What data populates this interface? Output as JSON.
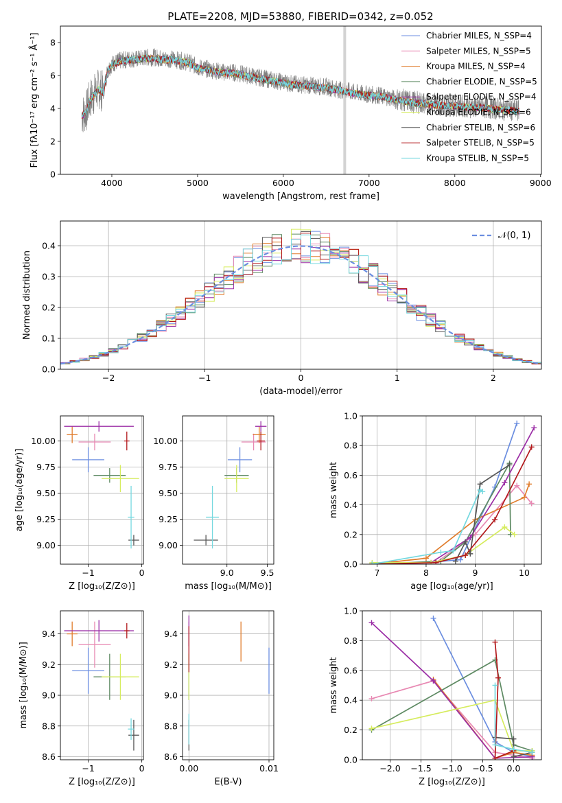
{
  "colors": [
    "#6b8ee0",
    "#e889b3",
    "#e07c2c",
    "#5e8a63",
    "#9b2ea6",
    "#d6ec5e",
    "#555555",
    "#b2181b",
    "#74d8df"
  ],
  "chart_data": [
    {
      "id": "spectrum",
      "type": "line",
      "title": "PLATE=2208, MJD=53880, FIBERID=0342, z=0.052",
      "xlabel": "wavelength [Angstrom, rest frame]",
      "ylabel": "Flux [fλ10⁻¹⁷ erg cm⁻² s⁻¹ Å⁻¹]",
      "xlim": [
        3400,
        9010
      ],
      "ylim": [
        0,
        9
      ],
      "xticks": [
        4000,
        5000,
        6000,
        7000,
        8000,
        9000
      ],
      "yticks": [
        0,
        2,
        4,
        6,
        8
      ],
      "data_color": "#808080",
      "data_x": [
        3650,
        3700,
        3750,
        3800,
        3850,
        3900,
        3950,
        4000,
        4100,
        4200,
        4300,
        4400,
        4500,
        4600,
        4700,
        4800,
        4900,
        5000,
        5100,
        5200,
        5300,
        5400,
        5500,
        5600,
        5700,
        5800,
        5900,
        6000,
        6100,
        6200,
        6300,
        6400,
        6500,
        6600,
        6700,
        6800,
        6900,
        7000,
        7100,
        7200,
        7300,
        7400,
        7500,
        7600,
        7700,
        7800,
        7900,
        8000,
        8100,
        8200,
        8300,
        8400,
        8500,
        8600,
        8700,
        8750
      ],
      "data_y": [
        3.6,
        3.8,
        4.6,
        4.9,
        5.2,
        5.0,
        6.3,
        6.7,
        6.9,
        7.0,
        7.0,
        7.1,
        7.1,
        7.0,
        7.0,
        6.9,
        6.8,
        6.5,
        6.4,
        6.3,
        6.2,
        6.2,
        6.1,
        6.0,
        5.9,
        5.8,
        5.7,
        5.6,
        5.5,
        5.45,
        5.4,
        5.35,
        5.3,
        5.2,
        5.1,
        5.0,
        4.9,
        4.85,
        4.8,
        4.7,
        4.6,
        4.5,
        4.4,
        4.35,
        4.3,
        4.25,
        4.2,
        4.2,
        4.15,
        4.1,
        4.1,
        4.05,
        4.0,
        3.95,
        3.9,
        3.85
      ],
      "legend": [
        "Chabrier MILES, N_SSP=4",
        "Salpeter MILES, N_SSP=5",
        "Kroupa MILES, N_SSP=4",
        "Chabrier ELODIE, N_SSP=5",
        "Salpeter ELODIE, N_SSP=4",
        "Kroupa ELODIE, N_SSP=6",
        "Chabrier STELIB, N_SSP=6",
        "Salpeter STELIB, N_SSP=5",
        "Kroupa STELIB, N_SSP=5"
      ],
      "legend_placement": "top-right"
    },
    {
      "id": "residuals",
      "type": "histogram",
      "xlabel": "(data-model)/error",
      "ylabel": "Normed distribution",
      "xlim": [
        -2.5,
        2.5
      ],
      "ylim": [
        0,
        0.48
      ],
      "xticks": [
        -2,
        -1,
        0,
        1,
        2
      ],
      "yticks": [
        0.0,
        0.1,
        0.2,
        0.3,
        0.4
      ],
      "bin_width": 0.1,
      "gaussian_label": "𝒩(0, 1)",
      "gaussian_color": "#6b8ee0",
      "grid": true,
      "legend_placement": "top-right"
    },
    {
      "id": "age_vs_Z",
      "type": "errorbar",
      "xlabel": "Z [log₁₀(Z/Z⊙)]",
      "ylabel": "age  [log₁₀(age/yr)]",
      "xlim": [
        -1.52,
        0.03
      ],
      "ylim": [
        8.82,
        10.24
      ],
      "xticks": [
        -1,
        0
      ],
      "yticks": [
        9.0,
        9.25,
        9.5,
        9.75,
        10.0
      ],
      "points": [
        {
          "x": -1.0,
          "xerr": 0.3,
          "y": 9.82,
          "yerr": 0.12,
          "c": 0
        },
        {
          "x": -0.88,
          "xerr": 0.3,
          "y": 9.99,
          "yerr": 0.08,
          "c": 1
        },
        {
          "x": -1.3,
          "xerr": 0.1,
          "y": 10.06,
          "yerr": 0.08,
          "c": 2
        },
        {
          "x": -0.6,
          "xerr": 0.3,
          "y": 9.67,
          "yerr": 0.07,
          "c": 3
        },
        {
          "x": -0.8,
          "xerr": 0.65,
          "y": 10.14,
          "yerr": 0.05,
          "c": 4
        },
        {
          "x": -0.4,
          "xerr": 0.35,
          "y": 9.64,
          "yerr": 0.13,
          "c": 5
        },
        {
          "x": -0.15,
          "xerr": 0.1,
          "y": 9.05,
          "yerr": 0.05,
          "c": 6
        },
        {
          "x": -0.28,
          "xerr": 0.05,
          "y": 10.0,
          "yerr": 0.09,
          "c": 7
        },
        {
          "x": -0.2,
          "xerr": 0.06,
          "y": 9.27,
          "yerr": 0.3,
          "c": 8
        }
      ]
    },
    {
      "id": "age_vs_mass",
      "type": "errorbar",
      "xlabel": "mass [log₁₀(M/M⊙)]",
      "ylabel": "",
      "xlim": [
        8.45,
        9.58
      ],
      "ylim": [
        8.82,
        10.24
      ],
      "xticks": [
        9.0,
        9.5
      ],
      "yticks": [
        9.0,
        9.25,
        9.5,
        9.75,
        10.0
      ],
      "points": [
        {
          "x": 9.16,
          "xerr": 0.15,
          "y": 9.82,
          "yerr": 0.12,
          "c": 0
        },
        {
          "x": 9.33,
          "xerr": 0.15,
          "y": 9.99,
          "yerr": 0.08,
          "c": 1
        },
        {
          "x": 9.4,
          "xerr": 0.08,
          "y": 10.06,
          "yerr": 0.08,
          "c": 2
        },
        {
          "x": 9.12,
          "xerr": 0.15,
          "y": 9.67,
          "yerr": 0.07,
          "c": 3
        },
        {
          "x": 9.42,
          "xerr": 0.07,
          "y": 10.14,
          "yerr": 0.05,
          "c": 4
        },
        {
          "x": 9.12,
          "xerr": 0.15,
          "y": 9.64,
          "yerr": 0.13,
          "c": 5
        },
        {
          "x": 8.74,
          "xerr": 0.15,
          "y": 9.05,
          "yerr": 0.05,
          "c": 6
        },
        {
          "x": 9.42,
          "xerr": 0.05,
          "y": 10.0,
          "yerr": 0.09,
          "c": 7
        },
        {
          "x": 8.82,
          "xerr": 0.08,
          "y": 9.27,
          "yerr": 0.3,
          "c": 8
        }
      ]
    },
    {
      "id": "massweight_vs_age",
      "type": "line",
      "xlabel": "age  [log₁₀(age/yr)]",
      "ylabel": "mass weight",
      "xlim": [
        6.7,
        10.35
      ],
      "ylim": [
        0,
        1.0
      ],
      "xticks": [
        7,
        8,
        9,
        10
      ],
      "yticks": [
        0.0,
        0.2,
        0.4,
        0.6,
        0.8,
        1.0
      ],
      "series": [
        {
          "c": 0,
          "x": [
            6.9,
            8.0,
            8.7,
            9.4,
            9.85
          ],
          "y": [
            0.0,
            0.01,
            0.03,
            0.52,
            0.95
          ]
        },
        {
          "c": 1,
          "x": [
            6.9,
            8.2,
            9.0,
            9.85,
            10.15
          ],
          "y": [
            0.0,
            0.01,
            0.2,
            0.53,
            0.41
          ]
        },
        {
          "c": 2,
          "x": [
            6.9,
            8.0,
            9.0,
            10.0,
            10.1
          ],
          "y": [
            0.0,
            0.04,
            0.3,
            0.45,
            0.54
          ]
        },
        {
          "c": 3,
          "x": [
            6.9,
            8.3,
            8.8,
            9.7,
            9.72
          ],
          "y": [
            0.0,
            0.02,
            0.15,
            0.68,
            0.2
          ]
        },
        {
          "c": 4,
          "x": [
            6.9,
            8.1,
            8.9,
            9.6,
            10.2
          ],
          "y": [
            0.0,
            0.01,
            0.18,
            0.55,
            0.92
          ]
        },
        {
          "c": 5,
          "x": [
            6.9,
            8.1,
            8.8,
            9.6,
            9.8
          ],
          "y": [
            0.01,
            0.01,
            0.06,
            0.25,
            0.2
          ]
        },
        {
          "c": 6,
          "x": [
            8.6,
            8.8,
            8.9,
            9.1,
            9.7
          ],
          "y": [
            0.02,
            0.15,
            0.07,
            0.54,
            0.67
          ]
        },
        {
          "c": 7,
          "x": [
            6.9,
            8.2,
            8.8,
            9.4,
            10.15
          ],
          "y": [
            0.0,
            0.01,
            0.06,
            0.3,
            0.79
          ]
        },
        {
          "c": 8,
          "x": [
            6.9,
            8.3,
            8.55,
            9.1,
            9.15
          ],
          "y": [
            0.0,
            0.08,
            0.09,
            0.5,
            0.49
          ]
        }
      ]
    },
    {
      "id": "mass_vs_Z",
      "type": "errorbar",
      "xlabel": "Z [log₁₀(Z/Z⊙)]",
      "ylabel": "mass [log₁₀(M/M⊙)]",
      "xlim": [
        -1.52,
        0.03
      ],
      "ylim": [
        8.58,
        9.55
      ],
      "xticks": [
        -1,
        0
      ],
      "yticks": [
        8.6,
        8.8,
        9.0,
        9.2,
        9.4
      ],
      "points": [
        {
          "x": -1.0,
          "xerr": 0.3,
          "y": 9.16,
          "yerr": 0.15,
          "c": 0
        },
        {
          "x": -0.88,
          "xerr": 0.3,
          "y": 9.33,
          "yerr": 0.15,
          "c": 1
        },
        {
          "x": -1.3,
          "xerr": 0.1,
          "y": 9.4,
          "yerr": 0.08,
          "c": 2
        },
        {
          "x": -0.6,
          "xerr": 0.3,
          "y": 9.12,
          "yerr": 0.15,
          "c": 3
        },
        {
          "x": -0.8,
          "xerr": 0.65,
          "y": 9.42,
          "yerr": 0.07,
          "c": 4
        },
        {
          "x": -0.4,
          "xerr": 0.35,
          "y": 9.12,
          "yerr": 0.15,
          "c": 5
        },
        {
          "x": -0.15,
          "xerr": 0.1,
          "y": 8.74,
          "yerr": 0.1,
          "c": 6
        },
        {
          "x": -0.28,
          "xerr": 0.05,
          "y": 9.42,
          "yerr": 0.05,
          "c": 7
        },
        {
          "x": -0.2,
          "xerr": 0.06,
          "y": 8.78,
          "yerr": 0.07,
          "c": 8
        }
      ]
    },
    {
      "id": "mass_vs_ebv",
      "type": "errorbar",
      "xlabel": "E(B-V)",
      "ylabel": "",
      "xlim": [
        -0.0008,
        0.0106
      ],
      "ylim": [
        8.58,
        9.55
      ],
      "xticks": [
        0.0,
        0.01
      ],
      "yticks": [
        8.6,
        8.8,
        9.0,
        9.2,
        9.4
      ],
      "points": [
        {
          "x": 0.01,
          "xerr": 0,
          "y": 9.16,
          "yerr": 0.15,
          "c": 0
        },
        {
          "x": 0.0,
          "xerr": 0,
          "y": 9.33,
          "yerr": 0.15,
          "c": 1
        },
        {
          "x": 0.0065,
          "xerr": 0,
          "y": 9.35,
          "yerr": 0.13,
          "c": 2
        },
        {
          "x": 0.0,
          "xerr": 0,
          "y": 9.12,
          "yerr": 0.15,
          "c": 3
        },
        {
          "x": 0.0,
          "xerr": 0,
          "y": 9.42,
          "yerr": 0.1,
          "c": 4
        },
        {
          "x": 0.0,
          "xerr": 0,
          "y": 9.12,
          "yerr": 0.15,
          "c": 5
        },
        {
          "x": 0.0,
          "xerr": 0,
          "y": 8.74,
          "yerr": 0.1,
          "c": 6
        },
        {
          "x": 0.0,
          "xerr": 0,
          "y": 9.3,
          "yerr": 0.15,
          "c": 7
        },
        {
          "x": 0.0,
          "xerr": 0,
          "y": 8.78,
          "yerr": 0.1,
          "c": 8
        }
      ]
    },
    {
      "id": "massweight_vs_Z",
      "type": "line",
      "xlabel": "Z [log₁₀(Z/Z⊙)]",
      "ylabel": "mass weight",
      "xlim": [
        -2.45,
        0.45
      ],
      "ylim": [
        0,
        1.0
      ],
      "xticks": [
        -2.0,
        -1.5,
        -1.0,
        -0.5,
        0.0
      ],
      "yticks": [
        0.0,
        0.2,
        0.4,
        0.6,
        0.8,
        1.0
      ],
      "series": [
        {
          "c": 0,
          "x": [
            -1.3,
            -0.3,
            0.0,
            0.3
          ],
          "y": [
            0.95,
            0.12,
            0.05,
            0.02
          ]
        },
        {
          "c": 1,
          "x": [
            -2.3,
            -1.3,
            -0.3,
            0.3
          ],
          "y": [
            0.41,
            0.53,
            0.05,
            0.01
          ]
        },
        {
          "c": 2,
          "x": [
            -1.3,
            -0.3,
            0.0,
            0.3
          ],
          "y": [
            0.54,
            0.01,
            0.05,
            0.03
          ]
        },
        {
          "c": 3,
          "x": [
            -2.3,
            -0.3,
            0.0,
            0.3
          ],
          "y": [
            0.2,
            0.67,
            0.1,
            0.06
          ]
        },
        {
          "c": 4,
          "x": [
            -2.3,
            -1.3,
            -0.3,
            0.3
          ],
          "y": [
            0.92,
            0.53,
            0.01,
            0.02
          ]
        },
        {
          "c": 5,
          "x": [
            -2.3,
            -0.3,
            0.0,
            0.3
          ],
          "y": [
            0.21,
            0.4,
            0.06,
            0.06
          ]
        },
        {
          "c": 6,
          "x": [
            -0.3,
            0.0,
            0.0,
            0.3
          ],
          "y": [
            0.15,
            0.14,
            0.02,
            0.05
          ]
        },
        {
          "c": 7,
          "x": [
            -0.3,
            -0.25,
            -0.3,
            0.0
          ],
          "y": [
            0.79,
            0.55,
            0.01,
            0.06
          ]
        },
        {
          "c": 8,
          "x": [
            -0.3,
            -0.3,
            0.0,
            0.3
          ],
          "y": [
            0.5,
            0.1,
            0.07,
            0.05
          ]
        }
      ]
    }
  ]
}
